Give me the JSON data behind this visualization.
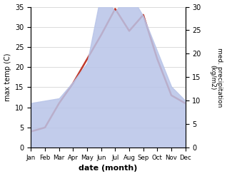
{
  "months": [
    "Jan",
    "Feb",
    "Mar",
    "Apr",
    "May",
    "Jun",
    "Jul",
    "Aug",
    "Sep",
    "Oct",
    "Nov",
    "Dec"
  ],
  "temperature": [
    4,
    5,
    11,
    16,
    22,
    28,
    34.5,
    29,
    33,
    22,
    13,
    11
  ],
  "precipitation": [
    9.5,
    10,
    10.5,
    14,
    18,
    33,
    29,
    33,
    28,
    20.5,
    13,
    10
  ],
  "temp_color": "#c0392b",
  "precip_fill_color": "#b8c4e8",
  "temp_ylim": [
    0,
    35
  ],
  "precip_ylim": [
    0,
    30
  ],
  "temp_yticks": [
    0,
    5,
    10,
    15,
    20,
    25,
    30,
    35
  ],
  "precip_yticks": [
    0,
    5,
    10,
    15,
    20,
    25,
    30
  ],
  "xlabel": "date (month)",
  "ylabel_left": "max temp (C)",
  "ylabel_right": "med. precipitation\n(kg/m2)",
  "grid_color": "#cccccc",
  "background_color": "#ffffff"
}
